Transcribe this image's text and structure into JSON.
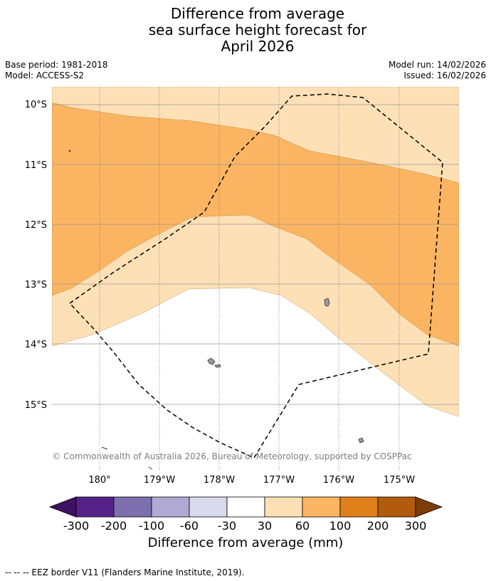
{
  "header": {
    "title_lines": [
      "Difference from average",
      "sea surface height forecast for",
      "April 2026"
    ],
    "base_period": "Base period: 1981-2018",
    "model": "Model: ACCESS-S2",
    "model_run": "Model run: 14/02/2026",
    "issued": "Issued: 16/02/2026"
  },
  "map": {
    "region": "Waters around Wallis and Futuna, South Pacific",
    "lat_labels": [
      "10°S",
      "11°S",
      "12°S",
      "13°S",
      "14°S",
      "15°S"
    ],
    "lon_labels": [
      "180°",
      "179°W",
      "178°W",
      "177°W",
      "176°W",
      "175°W"
    ],
    "copyright": "© Commonwealth of Australia 2026, Bureau of Meteorology, supported by COSPPac",
    "colors": {
      "band_30_60": "#fde0b6",
      "band_60_100": "#fbb562",
      "land": "#9a9a9a",
      "eez": "#000000"
    }
  },
  "colorbar": {
    "title": "Difference from average (mm)",
    "ticks": [
      "-300",
      "-200",
      "-100",
      "-60",
      "-30",
      "30",
      "60",
      "100",
      "200",
      "300"
    ],
    "colors": [
      "#401063",
      "#562289",
      "#7e6fae",
      "#b0a9d3",
      "#d8d9ea",
      "#ffffff",
      "#fde0b6",
      "#fbb562",
      "#e0801b",
      "#b15b0c",
      "#7e3d07"
    ]
  },
  "footnote": "--  --  -- EEZ border V11 (Flanders Marine Institute, 2019)."
}
